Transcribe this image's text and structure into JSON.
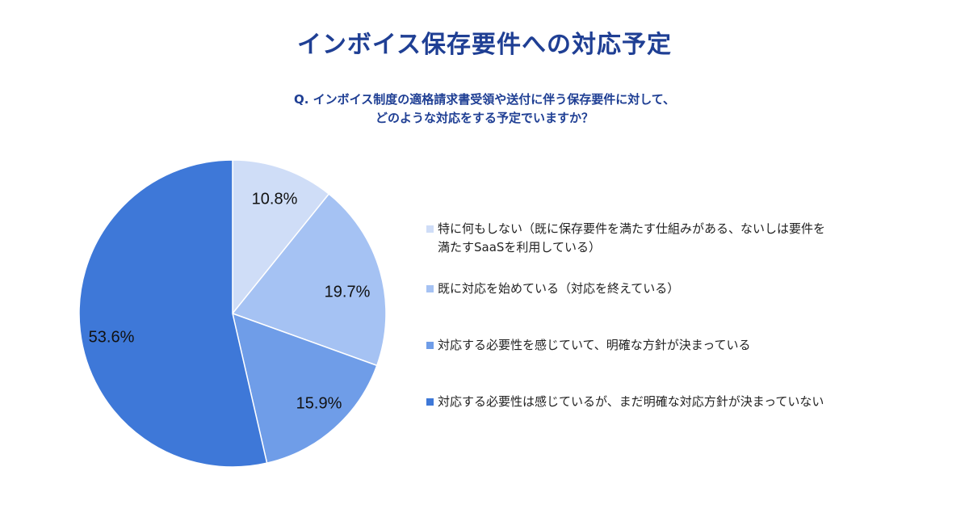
{
  "title": "インボイス保存要件への対応予定",
  "question": {
    "line1": "Q. インボイス制度の適格請求書受領や送付に伴う保存要件に対して、",
    "line2": "どのような対応をする予定でいますか？"
  },
  "chart_data": {
    "type": "pie",
    "title": "インボイス保存要件への対応予定",
    "start_angle_deg": 0,
    "direction": "clockwise",
    "slices": [
      {
        "label": "特に何もしない（既に保存要件を満たす仕組みがある、ないしは要件を\n満たすSaaSを利用している）",
        "value": 10.8,
        "display": "10.8%",
        "color": "#cfddf7"
      },
      {
        "label": "既に対応を始めている（対応を終えている）",
        "value": 19.7,
        "display": "19.7%",
        "color": "#a5c2f3"
      },
      {
        "label": "対応する必要性を感じていて、明確な方針が決まっている",
        "value": 15.9,
        "display": "15.9%",
        "color": "#6f9de8"
      },
      {
        "label": "対応する必要性は感じているが、まだ明確な対応方針が決まっていない",
        "value": 53.6,
        "display": "53.6%",
        "color": "#3e78d8"
      }
    ],
    "legend_position": "right"
  }
}
